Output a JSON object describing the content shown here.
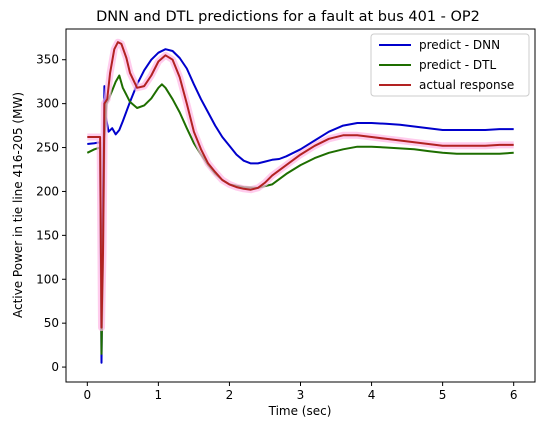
{
  "chart_data": {
    "type": "line",
    "title": "DNN and DTL predictions for a fault at bus 401 - OP2",
    "xlabel": "Time (sec)",
    "ylabel": "Active Power in tie line 416-205 (MW)",
    "xlim": [
      -0.3,
      6.3
    ],
    "ylim": [
      -17,
      385
    ],
    "xticks": [
      0,
      1,
      2,
      3,
      4,
      5,
      6
    ],
    "yticks": [
      0,
      50,
      100,
      150,
      200,
      250,
      300,
      350
    ],
    "grid": false,
    "legend_position": "top-right",
    "series": [
      {
        "name": "predict - DNN",
        "color": "#0000cc",
        "points": [
          [
            0,
            254
          ],
          [
            0.1,
            255
          ],
          [
            0.18,
            256
          ],
          [
            0.2,
            5
          ],
          [
            0.22,
            200
          ],
          [
            0.24,
            320
          ],
          [
            0.26,
            285
          ],
          [
            0.3,
            268
          ],
          [
            0.35,
            272
          ],
          [
            0.4,
            265
          ],
          [
            0.45,
            270
          ],
          [
            0.5,
            280
          ],
          [
            0.6,
            302
          ],
          [
            0.7,
            322
          ],
          [
            0.8,
            338
          ],
          [
            0.9,
            350
          ],
          [
            1.0,
            358
          ],
          [
            1.1,
            362
          ],
          [
            1.2,
            360
          ],
          [
            1.3,
            352
          ],
          [
            1.4,
            340
          ],
          [
            1.5,
            322
          ],
          [
            1.6,
            305
          ],
          [
            1.7,
            290
          ],
          [
            1.8,
            275
          ],
          [
            1.9,
            262
          ],
          [
            2.0,
            252
          ],
          [
            2.1,
            242
          ],
          [
            2.2,
            235
          ],
          [
            2.3,
            232
          ],
          [
            2.4,
            232
          ],
          [
            2.5,
            234
          ],
          [
            2.6,
            236
          ],
          [
            2.7,
            237
          ],
          [
            2.8,
            240
          ],
          [
            3.0,
            248
          ],
          [
            3.2,
            258
          ],
          [
            3.4,
            268
          ],
          [
            3.6,
            275
          ],
          [
            3.8,
            278
          ],
          [
            4.0,
            278
          ],
          [
            4.2,
            277
          ],
          [
            4.4,
            276
          ],
          [
            4.6,
            274
          ],
          [
            4.8,
            272
          ],
          [
            5.0,
            270
          ],
          [
            5.2,
            270
          ],
          [
            5.4,
            270
          ],
          [
            5.6,
            270
          ],
          [
            5.8,
            271
          ],
          [
            6.0,
            271
          ]
        ]
      },
      {
        "name": "predict - DTL",
        "color": "#1e6e00",
        "points": [
          [
            0,
            244
          ],
          [
            0.1,
            248
          ],
          [
            0.18,
            250
          ],
          [
            0.2,
            15
          ],
          [
            0.22,
            120
          ],
          [
            0.24,
            260
          ],
          [
            0.27,
            300
          ],
          [
            0.3,
            305
          ],
          [
            0.35,
            315
          ],
          [
            0.4,
            325
          ],
          [
            0.45,
            332
          ],
          [
            0.5,
            318
          ],
          [
            0.6,
            302
          ],
          [
            0.7,
            295
          ],
          [
            0.8,
            298
          ],
          [
            0.9,
            306
          ],
          [
            1.0,
            318
          ],
          [
            1.05,
            322
          ],
          [
            1.1,
            318
          ],
          [
            1.2,
            305
          ],
          [
            1.3,
            290
          ],
          [
            1.4,
            272
          ],
          [
            1.5,
            255
          ],
          [
            1.6,
            242
          ],
          [
            1.7,
            230
          ],
          [
            1.8,
            220
          ],
          [
            1.9,
            213
          ],
          [
            2.0,
            208
          ],
          [
            2.2,
            205
          ],
          [
            2.4,
            204
          ],
          [
            2.6,
            208
          ],
          [
            2.8,
            220
          ],
          [
            3.0,
            230
          ],
          [
            3.2,
            238
          ],
          [
            3.4,
            244
          ],
          [
            3.6,
            248
          ],
          [
            3.8,
            251
          ],
          [
            4.0,
            251
          ],
          [
            4.2,
            250
          ],
          [
            4.4,
            249
          ],
          [
            4.6,
            248
          ],
          [
            4.8,
            246
          ],
          [
            5.0,
            244
          ],
          [
            5.2,
            243
          ],
          [
            5.4,
            243
          ],
          [
            5.6,
            243
          ],
          [
            5.8,
            243
          ],
          [
            6.0,
            244
          ]
        ]
      },
      {
        "name": "actual response",
        "color": "#b22222",
        "points": [
          [
            0,
            262
          ],
          [
            0.1,
            262
          ],
          [
            0.18,
            262
          ],
          [
            0.2,
            45
          ],
          [
            0.22,
            130
          ],
          [
            0.24,
            300
          ],
          [
            0.28,
            305
          ],
          [
            0.32,
            335
          ],
          [
            0.38,
            362
          ],
          [
            0.43,
            370
          ],
          [
            0.48,
            368
          ],
          [
            0.55,
            352
          ],
          [
            0.6,
            335
          ],
          [
            0.7,
            318
          ],
          [
            0.8,
            320
          ],
          [
            0.9,
            332
          ],
          [
            1.0,
            348
          ],
          [
            1.1,
            355
          ],
          [
            1.2,
            350
          ],
          [
            1.3,
            330
          ],
          [
            1.4,
            300
          ],
          [
            1.5,
            268
          ],
          [
            1.6,
            248
          ],
          [
            1.7,
            232
          ],
          [
            1.8,
            222
          ],
          [
            1.9,
            213
          ],
          [
            2.0,
            208
          ],
          [
            2.1,
            205
          ],
          [
            2.2,
            203
          ],
          [
            2.3,
            202
          ],
          [
            2.4,
            204
          ],
          [
            2.5,
            210
          ],
          [
            2.6,
            218
          ],
          [
            2.8,
            230
          ],
          [
            3.0,
            242
          ],
          [
            3.2,
            252
          ],
          [
            3.4,
            260
          ],
          [
            3.6,
            264
          ],
          [
            3.8,
            264
          ],
          [
            4.0,
            262
          ],
          [
            4.2,
            260
          ],
          [
            4.4,
            258
          ],
          [
            4.6,
            256
          ],
          [
            4.8,
            254
          ],
          [
            5.0,
            252
          ],
          [
            5.2,
            252
          ],
          [
            5.4,
            252
          ],
          [
            5.6,
            252
          ],
          [
            5.8,
            253
          ],
          [
            6.0,
            253
          ]
        ]
      }
    ]
  }
}
